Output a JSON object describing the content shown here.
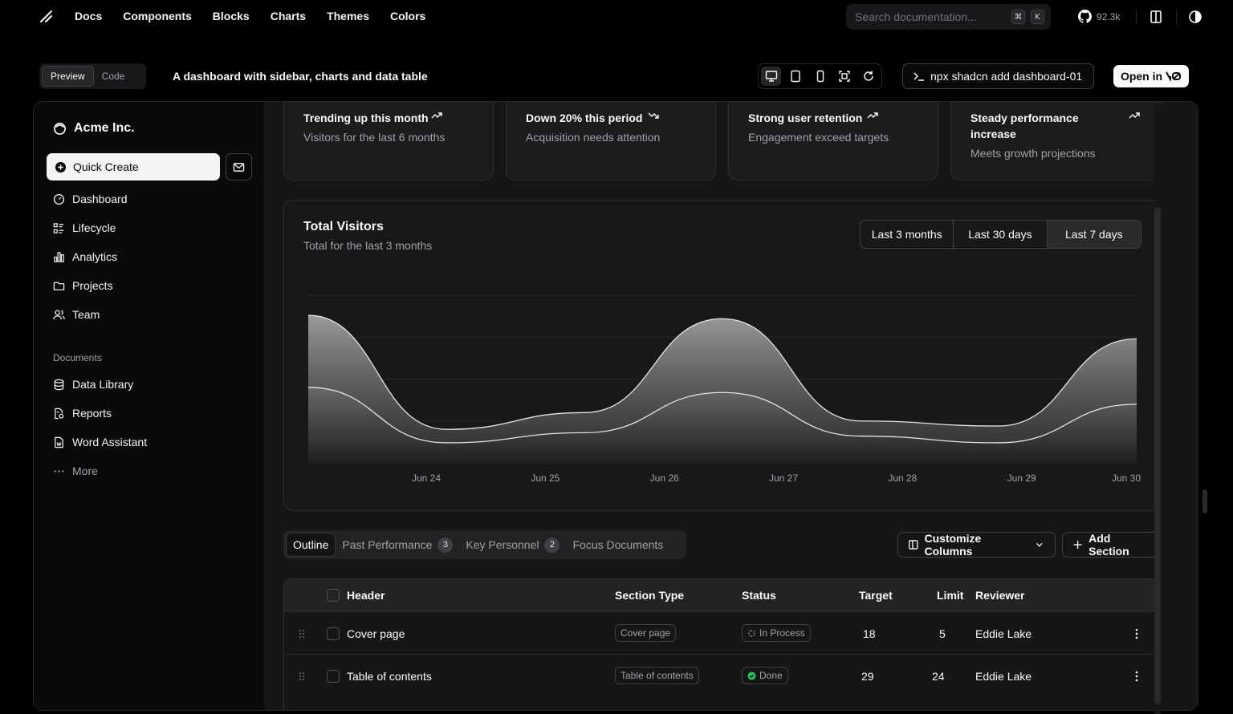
{
  "topnav": {
    "links": [
      "Docs",
      "Components",
      "Blocks",
      "Charts",
      "Themes",
      "Colors"
    ],
    "search_placeholder": "Search documentation...",
    "kbd_cmd": "⌘",
    "kbd_k": "K",
    "github_stars": "92.3k"
  },
  "preview_bar": {
    "preview_label": "Preview",
    "code_label": "Code",
    "description": "A dashboard with sidebar, charts and data table",
    "command": "npx shadcn add dashboard-01",
    "open_in_label": "Open in"
  },
  "sidebar": {
    "brand": "Acme Inc.",
    "quick_create": "Quick Create",
    "items": [
      "Dashboard",
      "Lifecycle",
      "Analytics",
      "Projects",
      "Team"
    ],
    "documents_label": "Documents",
    "documents": [
      "Data Library",
      "Reports",
      "Word Assistant",
      "More"
    ]
  },
  "cards": [
    {
      "title": "Trending up this month",
      "subtitle": "Visitors for the last 6 months"
    },
    {
      "title": "Down 20% this period",
      "subtitle": "Acquisition needs attention"
    },
    {
      "title": "Strong user retention",
      "subtitle": "Engagement exceed targets"
    },
    {
      "title_line1": "Steady performance",
      "title_line2": "increase",
      "subtitle": "Meets growth projections"
    }
  ],
  "chart": {
    "title": "Total Visitors",
    "subtitle": "Total for the last 3 months",
    "ranges": [
      "Last 3 months",
      "Last 30 days",
      "Last 7 days"
    ],
    "selected_range": "Last 7 days"
  },
  "chart_data": {
    "type": "area",
    "x": [
      "Jun 24",
      "Jun 25",
      "Jun 26",
      "Jun 27",
      "Jun 28",
      "Jun 29",
      "Jun 30"
    ],
    "series": [
      {
        "values": [
          88,
          20,
          30,
          86,
          25,
          22,
          74
        ]
      },
      {
        "values": [
          45,
          12,
          18,
          42,
          16,
          12,
          35
        ]
      }
    ],
    "ylim": [
      0,
      100
    ],
    "grid": true
  },
  "tabs": [
    {
      "label": "Outline"
    },
    {
      "label": "Past Performance",
      "badge": "3"
    },
    {
      "label": "Key Personnel",
      "badge": "2"
    },
    {
      "label": "Focus Documents"
    }
  ],
  "actions": {
    "customize": "Customize Columns",
    "add_section": "Add Section"
  },
  "table": {
    "headers": [
      "Header",
      "Section Type",
      "Status",
      "Target",
      "Limit",
      "Reviewer"
    ],
    "rows": [
      {
        "header": "Cover page",
        "type": "Cover page",
        "status": "In Process",
        "target": "18",
        "limit": "5",
        "reviewer": "Eddie Lake"
      },
      {
        "header": "Table of contents",
        "type": "Table of contents",
        "status": "Done",
        "target": "29",
        "limit": "24",
        "reviewer": "Eddie Lake"
      }
    ]
  }
}
